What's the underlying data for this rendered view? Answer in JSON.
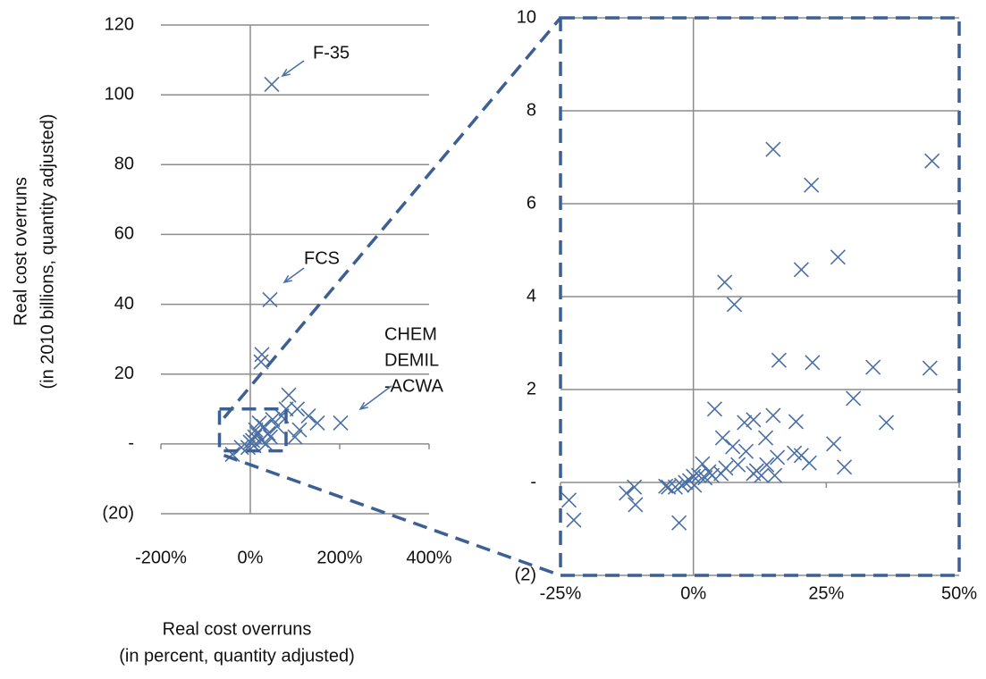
{
  "chart_data": [
    {
      "type": "scatter",
      "ylabel": [
        "Real cost overruns",
        "(in 2010 billions, quantity adjusted)"
      ],
      "xlabel": [
        "Real cost overruns",
        "(in percent, quantity adjusted)"
      ],
      "annotations": [
        "F-35",
        "FCS",
        [
          "CHEM",
          "DEMIL",
          "-ACWA"
        ]
      ],
      "color": "#4a6fa5",
      "xlim": [
        -200,
        400
      ],
      "xticks": [
        {
          "value": -200,
          "label": "-200%"
        },
        {
          "value": 0,
          "label": "0%"
        },
        {
          "value": 200,
          "label": "200%"
        },
        {
          "value": 400,
          "label": "400%"
        }
      ],
      "ylim": [
        -20,
        120
      ],
      "yticks": [
        {
          "value": -20,
          "label": "(20)"
        },
        {
          "value": 0,
          "label": "-"
        },
        20,
        40,
        60,
        80,
        100,
        120
      ],
      "grid": true,
      "x": [
        48,
        44,
        202,
        26,
        24,
        86,
        105,
        130,
        150,
        100,
        70,
        60,
        40,
        30,
        20,
        15,
        10,
        5,
        0,
        -5,
        -40,
        -20,
        8,
        25,
        35,
        45,
        12,
        50,
        80,
        110
      ],
      "y": [
        103,
        41.3,
        6,
        25.6,
        23.5,
        14,
        10,
        8,
        6,
        2,
        8,
        5,
        3,
        5,
        6,
        3,
        2,
        1,
        0.5,
        -1,
        -3,
        -1,
        -0.5,
        1,
        0,
        2,
        4,
        7,
        10,
        4
      ]
    },
    {
      "type": "scatter",
      "color": "#4a6fa5",
      "xlim": [
        -25,
        50
      ],
      "xticks": [
        {
          "value": -25,
          "label": "-25%"
        },
        {
          "value": 0,
          "label": "0%"
        },
        {
          "value": 25,
          "label": "25%"
        },
        {
          "value": 50,
          "label": "50%"
        }
      ],
      "ylim": [
        -2,
        10
      ],
      "yticks": [
        {
          "value": -2,
          "label": "(2)"
        },
        {
          "value": 0,
          "label": "-"
        },
        2,
        4,
        6,
        8,
        10
      ],
      "grid": true,
      "x": [
        15,
        44.9,
        22.2,
        27.2,
        20.3,
        5.9,
        7.7,
        16.1,
        22.4,
        33.8,
        44.5,
        30.1,
        36.3,
        4.0,
        5.5,
        11.3,
        15,
        9.6,
        19.3,
        13.6,
        7.4,
        9.9,
        19,
        26.4,
        21.8,
        28.4,
        20.3,
        15.8,
        13.8,
        11.9,
        11.3,
        15.3,
        12.8,
        8.4,
        6.1,
        5.2,
        3.5,
        2.9,
        2.2,
        1.0,
        1.7,
        0,
        -0.7,
        -1.5,
        0.2,
        -2.2,
        -2.7,
        -3.4,
        -4.7,
        -5.2,
        -11.1,
        -12.6,
        -10.9,
        -23.4,
        -22.5
      ],
      "y": [
        7.17,
        6.92,
        6.4,
        4.85,
        4.58,
        4.31,
        3.83,
        2.63,
        2.58,
        2.48,
        2.46,
        1.81,
        1.29,
        1.58,
        0.96,
        1.35,
        1.44,
        1.29,
        1.31,
        0.96,
        0.77,
        0.67,
        0.63,
        0.83,
        0.42,
        0.33,
        0.58,
        0.54,
        0.38,
        0.25,
        0.19,
        0.15,
        0.15,
        0.38,
        0.31,
        0.19,
        0.15,
        0.23,
        0.1,
        0.15,
        0.4,
        0.13,
        0.04,
        0,
        -0.06,
        -0.06,
        -0.87,
        -0.1,
        -0.1,
        -0.08,
        -0.1,
        -0.23,
        -0.48,
        -0.38,
        -0.81
      ]
    }
  ]
}
